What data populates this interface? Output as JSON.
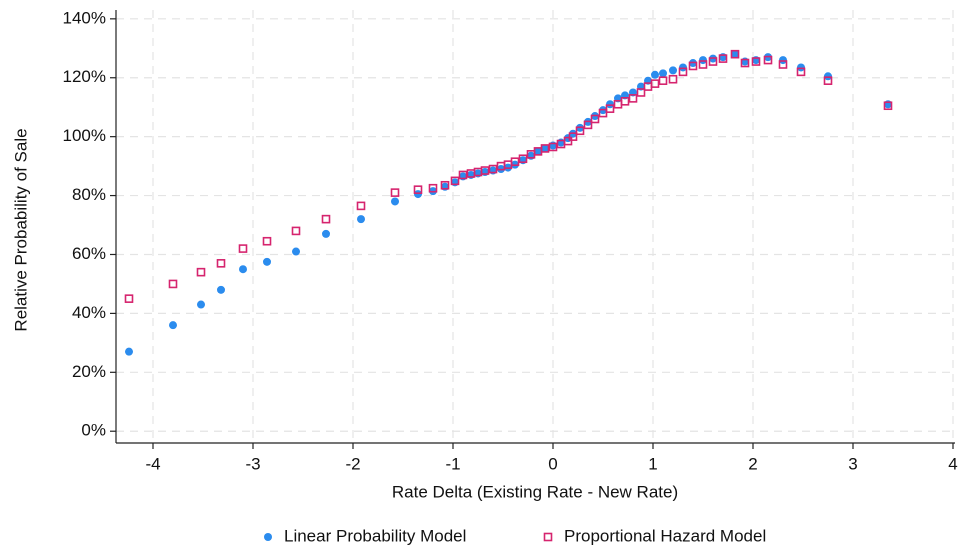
{
  "chart_data": {
    "type": "scatter",
    "xlabel": "Rate Delta (Existing Rate - New Rate)",
    "ylabel": "Relative Probability of Sale",
    "xlim": [
      -4.37,
      4.02
    ],
    "xticks": [
      -4,
      -3,
      -2,
      -1,
      0,
      1,
      2,
      3,
      4
    ],
    "ylim": [
      -4,
      143
    ],
    "yticks": [
      {
        "value": 0,
        "label": "0%"
      },
      {
        "value": 20,
        "label": "20%"
      },
      {
        "value": 40,
        "label": "40%"
      },
      {
        "value": 60,
        "label": "60%"
      },
      {
        "value": 80,
        "label": "80%"
      },
      {
        "value": 100,
        "label": "100%"
      },
      {
        "value": 120,
        "label": "120%"
      },
      {
        "value": 140,
        "label": "140%"
      }
    ],
    "grid": true,
    "legend": "bottom",
    "x": [
      -4.24,
      -3.8,
      -3.52,
      -3.32,
      -3.1,
      -2.86,
      -2.57,
      -2.27,
      -1.92,
      -1.58,
      -1.35,
      -1.2,
      -1.08,
      -0.98,
      -0.9,
      -0.82,
      -0.75,
      -0.68,
      -0.6,
      -0.52,
      -0.45,
      -0.38,
      -0.3,
      -0.22,
      -0.15,
      -0.08,
      0,
      0.08,
      0.15,
      0.2,
      0.27,
      0.35,
      0.42,
      0.5,
      0.57,
      0.65,
      0.72,
      0.8,
      0.88,
      0.95,
      1.02,
      1.1,
      1.2,
      1.3,
      1.4,
      1.5,
      1.6,
      1.7,
      1.82,
      1.92,
      2.03,
      2.15,
      2.3,
      2.48,
      2.75,
      3.35
    ],
    "series": [
      {
        "name": "Linear Probability Model",
        "color": "#2b8cee",
        "marker": "circle",
        "values": [
          27,
          36,
          43,
          48,
          55,
          57.5,
          61,
          67,
          72,
          78,
          80.5,
          81.5,
          83,
          84.5,
          86.5,
          87,
          87.5,
          88,
          88.5,
          89,
          89.5,
          90.5,
          92,
          93.5,
          95,
          96,
          97,
          98,
          99.5,
          101,
          103,
          105,
          107,
          109,
          111,
          113,
          114,
          115,
          117,
          119,
          121,
          121.5,
          122.5,
          123.5,
          125,
          126,
          126.5,
          127,
          128,
          125.5,
          126,
          127,
          126,
          123.5,
          120.5,
          111
        ]
      },
      {
        "name": "Proportional Hazard Model",
        "color": "#d6246e",
        "marker": "square",
        "values": [
          45,
          50,
          54,
          57,
          62,
          64.5,
          68,
          72,
          76.5,
          81,
          82,
          82.5,
          83.5,
          85,
          87,
          87.5,
          88,
          88.5,
          89,
          90,
          90.5,
          91.5,
          92.5,
          94,
          95,
          96,
          96.5,
          97.5,
          98.5,
          100,
          102,
          104,
          106,
          108,
          109.5,
          111,
          112,
          113,
          115,
          117,
          118,
          119,
          119.5,
          122,
          124,
          124.5,
          125.5,
          126.5,
          128,
          125,
          125.5,
          126,
          124.5,
          122,
          119,
          110.5
        ]
      }
    ]
  }
}
